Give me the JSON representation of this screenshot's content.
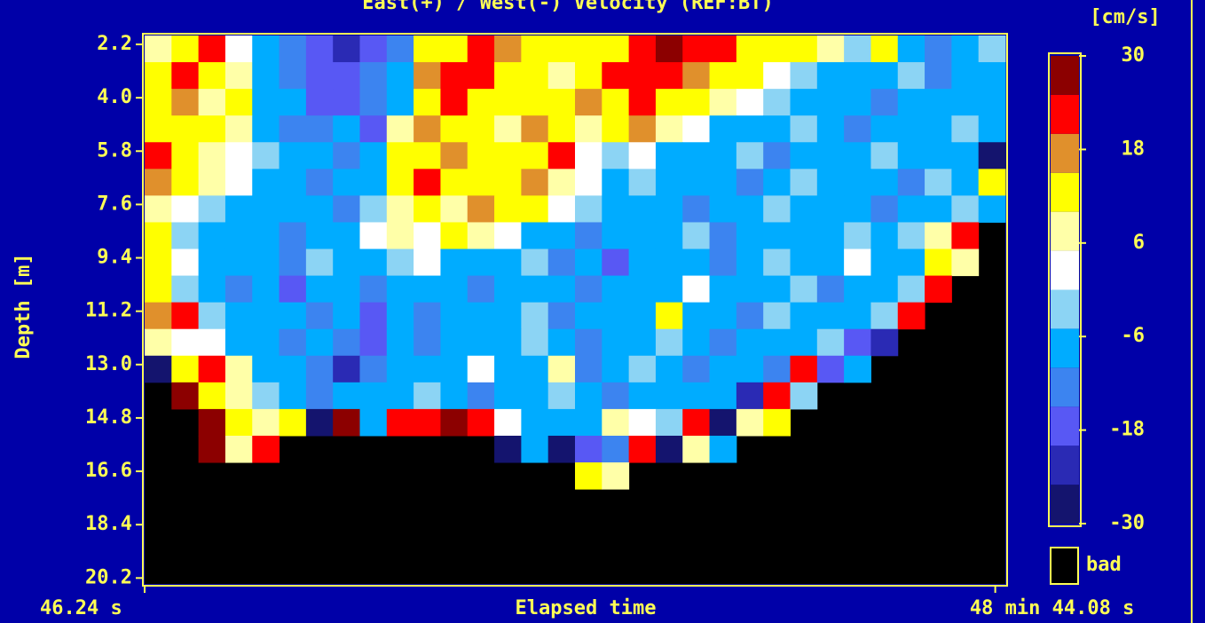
{
  "chart_data": {
    "type": "heatmap",
    "title": "East(+) / West(-) Velocity (REF:BT)",
    "x_label": "Elapsed time",
    "y_label": "Depth [m]",
    "xlim": [
      46.24,
      2958.24
    ],
    "xticks": [
      {
        "value": 46.24,
        "label": "46.24 s"
      },
      {
        "value": 2924.08,
        "label": "48 min 44.08 s"
      }
    ],
    "ylim": [
      20.4,
      1.9
    ],
    "yticks": [
      2.2,
      {
        "value": 4,
        "label": "4.0"
      },
      5.8,
      7.6,
      9.4,
      11.2,
      {
        "value": 13,
        "label": "13.0"
      },
      14.8,
      16.6,
      18.4,
      20.2
    ],
    "x": [
      91.74,
      182.74,
      273.74,
      364.74,
      455.74,
      546.74,
      637.74,
      728.74,
      819.74,
      910.74,
      1001.74,
      1092.74,
      1183.74,
      1274.74,
      1365.74,
      1456.74,
      1547.74,
      1638.74,
      1729.74,
      1820.74,
      1911.74,
      2002.74,
      2093.74,
      2184.74,
      2275.74,
      2366.74,
      2457.74,
      2548.74,
      2639.74,
      2730.74,
      2821.74,
      2912.74
    ],
    "y": [
      2.35,
      3.25,
      4.15,
      5.05,
      5.95,
      6.85,
      7.75,
      8.65,
      9.55,
      10.45,
      11.35,
      12.25,
      13.15,
      14.05,
      14.95,
      15.85,
      16.75
    ],
    "z": [
      [
        8,
        12,
        20,
        3,
        -8,
        -14,
        -18,
        -22,
        -16,
        -12,
        10,
        14,
        22,
        18,
        12,
        10,
        11,
        14,
        22,
        26,
        24,
        20,
        12,
        10,
        14,
        8,
        -4,
        10,
        -8,
        -12,
        -6,
        -4
      ],
      [
        14,
        20,
        10,
        8,
        -10,
        -12,
        -20,
        -18,
        -14,
        -6,
        16,
        22,
        20,
        14,
        10,
        8,
        12,
        20,
        22,
        24,
        18,
        14,
        10,
        4,
        -2,
        -6,
        -10,
        -8,
        -4,
        -12,
        -8,
        -6
      ],
      [
        12,
        16,
        8,
        10,
        -6,
        -10,
        -16,
        -20,
        -12,
        -8,
        14,
        20,
        12,
        10,
        14,
        12,
        16,
        12,
        20,
        14,
        12,
        8,
        2,
        -4,
        -8,
        -10,
        -6,
        -12,
        -8,
        -6,
        -10,
        -8
      ],
      [
        10,
        14,
        12,
        6,
        -8,
        -12,
        -14,
        -10,
        -16,
        8,
        18,
        12,
        10,
        8,
        16,
        12,
        6,
        10,
        16,
        8,
        2,
        -6,
        -8,
        -10,
        -4,
        -8,
        -12,
        -6,
        -10,
        -8,
        -4,
        -6
      ],
      [
        20,
        12,
        8,
        4,
        -4,
        -10,
        -8,
        -12,
        -6,
        10,
        14,
        18,
        10,
        12,
        14,
        20,
        4,
        -2,
        2,
        -6,
        -8,
        -10,
        -4,
        -12,
        -8,
        -6,
        -10,
        -4,
        -8,
        -6,
        -10,
        -28
      ],
      [
        18,
        10,
        6,
        2,
        -6,
        -8,
        -12,
        -6,
        -10,
        14,
        20,
        12,
        14,
        10,
        16,
        8,
        2,
        -6,
        -4,
        -8,
        -10,
        -6,
        -12,
        -8,
        -4,
        -10,
        -6,
        -8,
        -12,
        -4,
        -8,
        14
      ],
      [
        8,
        4,
        -4,
        -8,
        -10,
        -6,
        -8,
        -12,
        -4,
        6,
        12,
        8,
        16,
        10,
        10,
        4,
        -4,
        -8,
        -10,
        -6,
        -12,
        -8,
        -6,
        -4,
        -10,
        -8,
        -6,
        -12,
        -8,
        -6,
        -4,
        -10
      ],
      [
        12,
        -4,
        -8,
        -6,
        -10,
        -12,
        -6,
        -8,
        2,
        8,
        4,
        10,
        6,
        2,
        -6,
        -8,
        -12,
        -6,
        -10,
        -8,
        -4,
        -12,
        -6,
        -8,
        -10,
        -6,
        -4,
        -8,
        -2,
        8,
        22,
        null
      ],
      [
        10,
        2,
        -6,
        -10,
        -8,
        -12,
        -4,
        -10,
        -6,
        -2,
        4,
        -6,
        -8,
        -10,
        -4,
        -14,
        -8,
        -18,
        -6,
        -10,
        -8,
        -12,
        -6,
        -4,
        -10,
        -8,
        2,
        -6,
        -10,
        12,
        6,
        null
      ],
      [
        14,
        -4,
        -8,
        -12,
        -6,
        -20,
        -10,
        -8,
        -14,
        -6,
        -10,
        -8,
        -12,
        -6,
        -10,
        -8,
        -14,
        -6,
        -10,
        -8,
        4,
        -6,
        -10,
        -8,
        -4,
        -12,
        -6,
        -8,
        -4,
        22,
        null,
        null
      ],
      [
        16,
        22,
        -2,
        -10,
        -8,
        -6,
        -12,
        -10,
        -16,
        -8,
        -12,
        -6,
        -10,
        -8,
        -4,
        -12,
        -6,
        -8,
        -10,
        10,
        -6,
        -8,
        -12,
        -4,
        -10,
        -8,
        -6,
        -2,
        20,
        null,
        null,
        null
      ],
      [
        8,
        2,
        4,
        -6,
        -10,
        -12,
        -8,
        -14,
        -18,
        -10,
        -12,
        -8,
        -6,
        -10,
        -4,
        -8,
        -12,
        -6,
        -10,
        -4,
        -8,
        -12,
        -6,
        -10,
        -8,
        -4,
        -20,
        -24,
        null,
        null,
        null,
        null
      ],
      [
        -26,
        10,
        22,
        6,
        -8,
        -10,
        -14,
        -24,
        -12,
        -8,
        -10,
        -6,
        4,
        -8,
        -10,
        8,
        -12,
        -6,
        -4,
        -8,
        -14,
        -10,
        -6,
        -12,
        24,
        -20,
        -8,
        null,
        null,
        null,
        null,
        null
      ],
      [
        null,
        26,
        12,
        6,
        -4,
        -10,
        -12,
        -8,
        -6,
        -10,
        -4,
        -8,
        -12,
        -6,
        -10,
        -4,
        -8,
        -12,
        -6,
        -10,
        -8,
        -6,
        -24,
        20,
        -4,
        null,
        null,
        null,
        null,
        null,
        null,
        null
      ],
      [
        null,
        null,
        28,
        10,
        6,
        12,
        -26,
        28,
        -6,
        24,
        20,
        26,
        22,
        4,
        -6,
        -10,
        -8,
        6,
        2,
        -4,
        20,
        -26,
        8,
        10,
        null,
        null,
        null,
        null,
        null,
        null,
        null,
        null
      ],
      [
        null,
        null,
        26,
        8,
        22,
        null,
        null,
        null,
        null,
        null,
        null,
        null,
        null,
        -28,
        -8,
        -26,
        -20,
        -12,
        20,
        -26,
        6,
        -10,
        null,
        null,
        null,
        null,
        null,
        null,
        null,
        null,
        null,
        null
      ],
      [
        null,
        null,
        null,
        null,
        null,
        null,
        null,
        null,
        null,
        null,
        null,
        null,
        null,
        null,
        null,
        null,
        10,
        8,
        null,
        null,
        null,
        null,
        null,
        null,
        null,
        null,
        null,
        null,
        null,
        null,
        null,
        null
      ]
    ],
    "colorbar": {
      "label": "[cm/s]",
      "lim": [
        -30,
        30
      ],
      "levels": [
        -30,
        -25,
        -20,
        -15,
        -10,
        -5,
        0,
        5,
        10,
        15,
        20,
        25,
        30
      ],
      "colors": [
        "#14146e",
        "#2a2ab4",
        "#5858f4",
        "#3c84f0",
        "#00acff",
        "#8cd4f4",
        "#ffffff",
        "#ffffa8",
        "#ffff00",
        "#e0902c",
        "#ff0000",
        "#8c0000"
      ],
      "ticks": [
        -30,
        -18,
        -6,
        6,
        18,
        30
      ]
    },
    "bad_color": "#000000",
    "bad_label": "bad"
  }
}
